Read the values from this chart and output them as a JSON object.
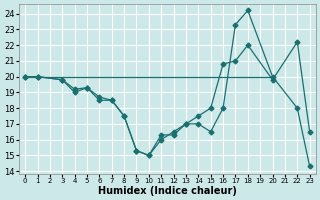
{
  "xlabel": "Humidex (Indice chaleur)",
  "bg_color": "#cde8e8",
  "line_color": "#1a7070",
  "grid_color": "#ffffff",
  "xlim": [
    -0.5,
    23.5
  ],
  "ylim": [
    13.8,
    24.6
  ],
  "yticks": [
    14,
    15,
    16,
    17,
    18,
    19,
    20,
    21,
    22,
    23,
    24
  ],
  "xticks": [
    0,
    1,
    2,
    3,
    4,
    5,
    6,
    7,
    8,
    9,
    10,
    11,
    12,
    13,
    14,
    15,
    16,
    17,
    18,
    19,
    20,
    21,
    22,
    23
  ],
  "line1_x": [
    0,
    1,
    20
  ],
  "line1_y": [
    20,
    20,
    20
  ],
  "line2_x": [
    0,
    1,
    3,
    4,
    5,
    6,
    7,
    8,
    9,
    10,
    11,
    12,
    13,
    14,
    15,
    16,
    17,
    18,
    20,
    22,
    23
  ],
  "line2_y": [
    20,
    20,
    19.8,
    19.2,
    19.3,
    18.7,
    18.5,
    17.5,
    15.3,
    15.0,
    16.3,
    16.3,
    17.0,
    17.0,
    16.5,
    18.0,
    23.3,
    24.2,
    20,
    18.0,
    14.3
  ],
  "line3_x": [
    0,
    1,
    3,
    4,
    5,
    6,
    7,
    8,
    9,
    10,
    11,
    12,
    13,
    14,
    15,
    16,
    17,
    18,
    20,
    22,
    23
  ],
  "line3_y": [
    20,
    20,
    19.8,
    19.0,
    19.3,
    18.5,
    18.5,
    17.5,
    15.3,
    15.0,
    16.0,
    16.5,
    17.0,
    17.5,
    18.0,
    20.8,
    21.0,
    22.0,
    19.8,
    22.2,
    16.5
  ]
}
